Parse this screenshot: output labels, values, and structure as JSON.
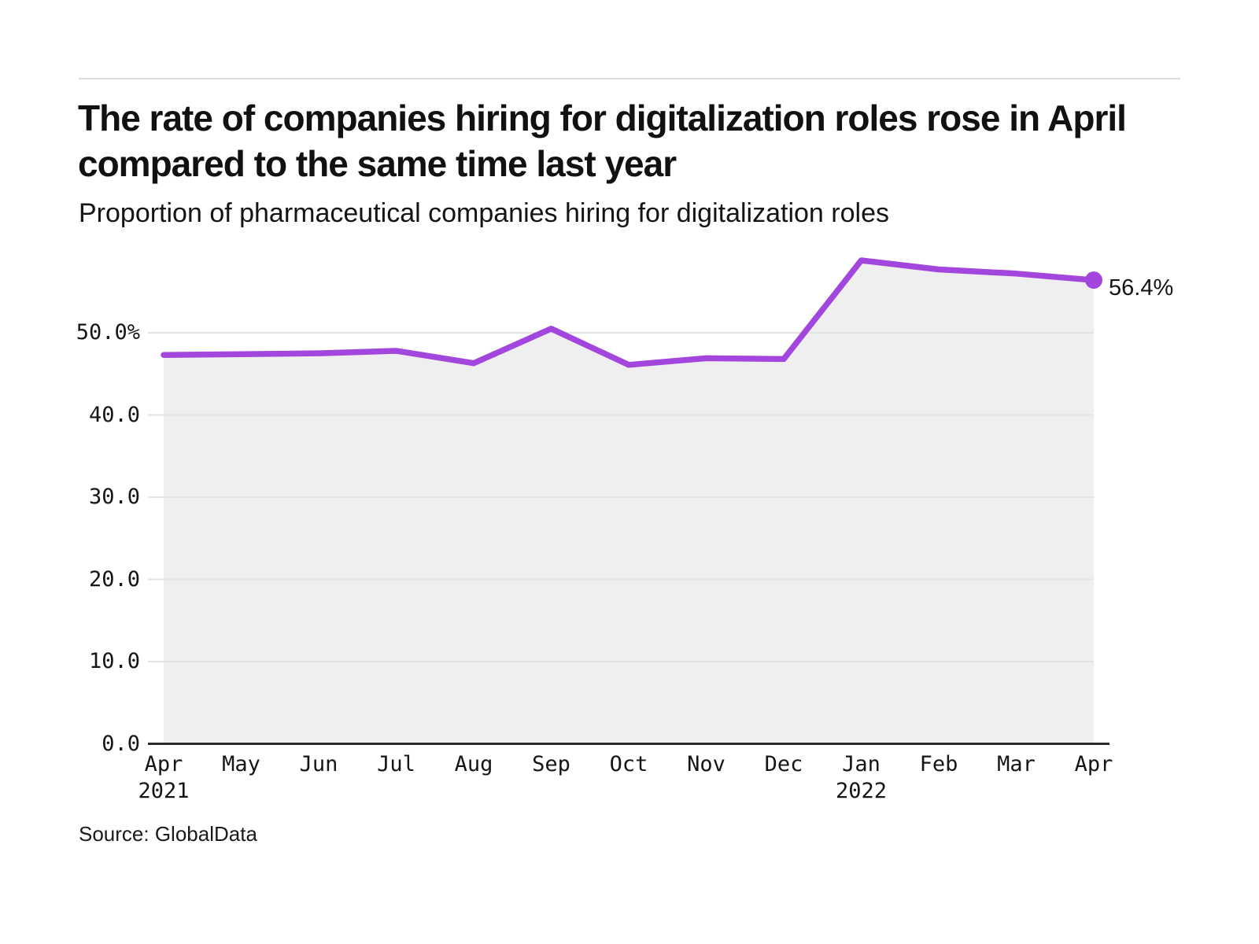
{
  "header": {
    "title": "The rate of companies hiring for digitalization roles rose in April compared to the same time last year",
    "subtitle": "Proportion of pharmaceutical companies hiring for digitalization roles"
  },
  "footer": {
    "source": "Source: GlobalData"
  },
  "chart_data": {
    "type": "area",
    "title": "Proportion of pharmaceutical companies hiring for digitalization roles",
    "categories": [
      "Apr 2021",
      "May 2021",
      "Jun 2021",
      "Jul 2021",
      "Aug 2021",
      "Sep 2021",
      "Oct 2021",
      "Nov 2021",
      "Dec 2021",
      "Jan 2022",
      "Feb 2022",
      "Mar 2022",
      "Apr 2022"
    ],
    "values": [
      47.3,
      47.4,
      47.5,
      47.8,
      46.3,
      50.5,
      46.1,
      46.9,
      46.8,
      58.8,
      57.7,
      57.2,
      56.4
    ],
    "unit": "%",
    "end_label": "56.4%",
    "ylim": [
      0,
      50
    ],
    "grid": "horizontal",
    "legend": "none",
    "yticks": [
      {
        "label": "50.0%",
        "value": 50
      },
      {
        "label": "40.0",
        "value": 40
      },
      {
        "label": "30.0",
        "value": 30
      },
      {
        "label": "20.0",
        "value": 20
      },
      {
        "label": "10.0",
        "value": 10
      },
      {
        "label": "0.0",
        "value": 0
      }
    ],
    "xticks": [
      {
        "label": "Apr",
        "sublabel": "2021"
      },
      {
        "label": "May"
      },
      {
        "label": "Jun"
      },
      {
        "label": "Jul"
      },
      {
        "label": "Aug"
      },
      {
        "label": "Sep"
      },
      {
        "label": "Oct"
      },
      {
        "label": "Nov"
      },
      {
        "label": "Dec"
      },
      {
        "label": "Jan",
        "sublabel": "2022"
      },
      {
        "label": "Feb"
      },
      {
        "label": "Mar"
      },
      {
        "label": "Apr"
      }
    ],
    "colors": {
      "line": "#A246DE",
      "area_fill": "#EFEFEF",
      "gridline": "#E3E3E3",
      "axis": "#2B2B2B",
      "text": "#151515",
      "rule": "#DDDDDD"
    }
  }
}
